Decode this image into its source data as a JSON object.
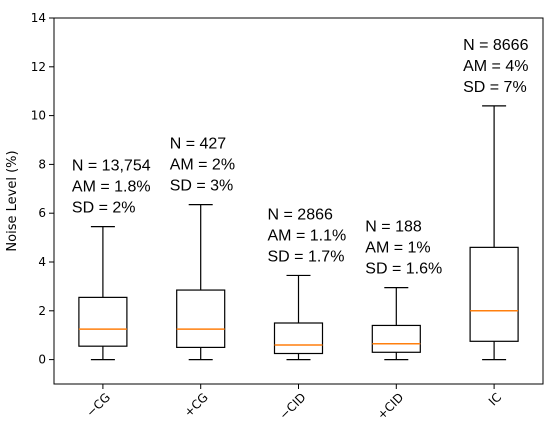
{
  "chart_data": {
    "type": "box",
    "title": "",
    "xlabel": "",
    "ylabel": "Noise Level (%)",
    "ylim": [
      -1,
      14
    ],
    "yticks": [
      0,
      2,
      4,
      6,
      8,
      10,
      12,
      14
    ],
    "ytick_labels": [
      "0",
      "2",
      "4",
      "6",
      "8",
      "10",
      "12",
      "14"
    ],
    "grid": false,
    "colors": {
      "box": "#000000",
      "median": "#ff7f0e"
    },
    "categories": [
      "−CG",
      "+CG",
      "−CID",
      "+CID",
      "IC"
    ],
    "boxes": [
      {
        "label": "−CG",
        "whisker_low": 0.0,
        "q1": 0.55,
        "median": 1.25,
        "q3": 2.55,
        "whisker_high": 5.45
      },
      {
        "label": "+CG",
        "whisker_low": 0.0,
        "q1": 0.5,
        "median": 1.25,
        "q3": 2.85,
        "whisker_high": 6.35
      },
      {
        "label": "−CID",
        "whisker_low": 0.0,
        "q1": 0.25,
        "median": 0.6,
        "q3": 1.5,
        "whisker_high": 3.45
      },
      {
        "label": "+CID",
        "whisker_low": 0.0,
        "q1": 0.3,
        "median": 0.65,
        "q3": 1.4,
        "whisker_high": 2.95
      },
      {
        "label": "IC",
        "whisker_low": 0.0,
        "q1": 0.75,
        "median": 2.0,
        "q3": 4.6,
        "whisker_high": 10.4
      }
    ],
    "annotations": [
      {
        "box": 0,
        "lines": [
          "N = 13,754",
          "AM = 1.8%",
          "SD = 2%"
        ]
      },
      {
        "box": 1,
        "lines": [
          "N = 427",
          "AM = 2%",
          "SD = 3%"
        ]
      },
      {
        "box": 2,
        "lines": [
          "N = 2866",
          "AM = 1.1%",
          "SD = 1.7%"
        ]
      },
      {
        "box": 3,
        "lines": [
          "N = 188",
          "AM = 1%",
          "SD = 1.6%"
        ]
      },
      {
        "box": 4,
        "lines": [
          "N = 8666",
          "AM = 4%",
          "SD = 7%"
        ]
      }
    ]
  }
}
